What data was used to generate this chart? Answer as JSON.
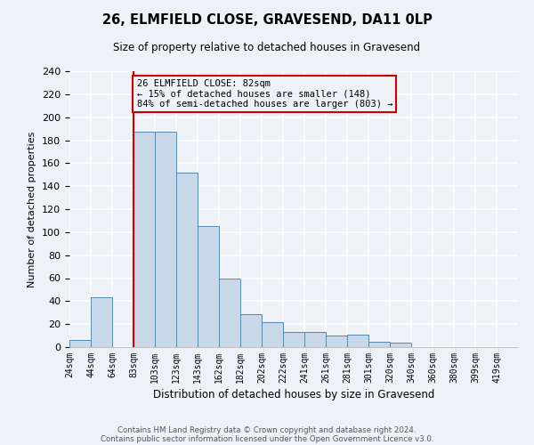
{
  "title": "26, ELMFIELD CLOSE, GRAVESEND, DA11 0LP",
  "subtitle": "Size of property relative to detached houses in Gravesend",
  "xlabel": "Distribution of detached houses by size in Gravesend",
  "ylabel": "Number of detached properties",
  "footnote1": "Contains HM Land Registry data © Crown copyright and database right 2024.",
  "footnote2": "Contains public sector information licensed under the Open Government Licence v3.0.",
  "bin_labels": [
    "24sqm",
    "44sqm",
    "64sqm",
    "83sqm",
    "103sqm",
    "123sqm",
    "143sqm",
    "162sqm",
    "182sqm",
    "202sqm",
    "222sqm",
    "241sqm",
    "261sqm",
    "281sqm",
    "301sqm",
    "320sqm",
    "340sqm",
    "360sqm",
    "380sqm",
    "399sqm",
    "419sqm"
  ],
  "counts": [
    6,
    43,
    0,
    187,
    187,
    152,
    105,
    60,
    29,
    22,
    13,
    13,
    10,
    11,
    5,
    4,
    0,
    0,
    0,
    0,
    0
  ],
  "bar_color": "#c8d8e8",
  "bar_edge_color": "#5588aa",
  "property_line_index": 3,
  "property_line_color": "#cc0000",
  "ylim": [
    0,
    240
  ],
  "yticks": [
    0,
    20,
    40,
    60,
    80,
    100,
    120,
    140,
    160,
    180,
    200,
    220,
    240
  ],
  "annotation_title": "26 ELMFIELD CLOSE: 82sqm",
  "annotation_line1": "← 15% of detached houses are smaller (148)",
  "annotation_line2": "84% of semi-detached houses are larger (803) →",
  "annotation_box_color": "#cc0000",
  "background_color": "#eef2f7",
  "grid_color": "#ffffff"
}
